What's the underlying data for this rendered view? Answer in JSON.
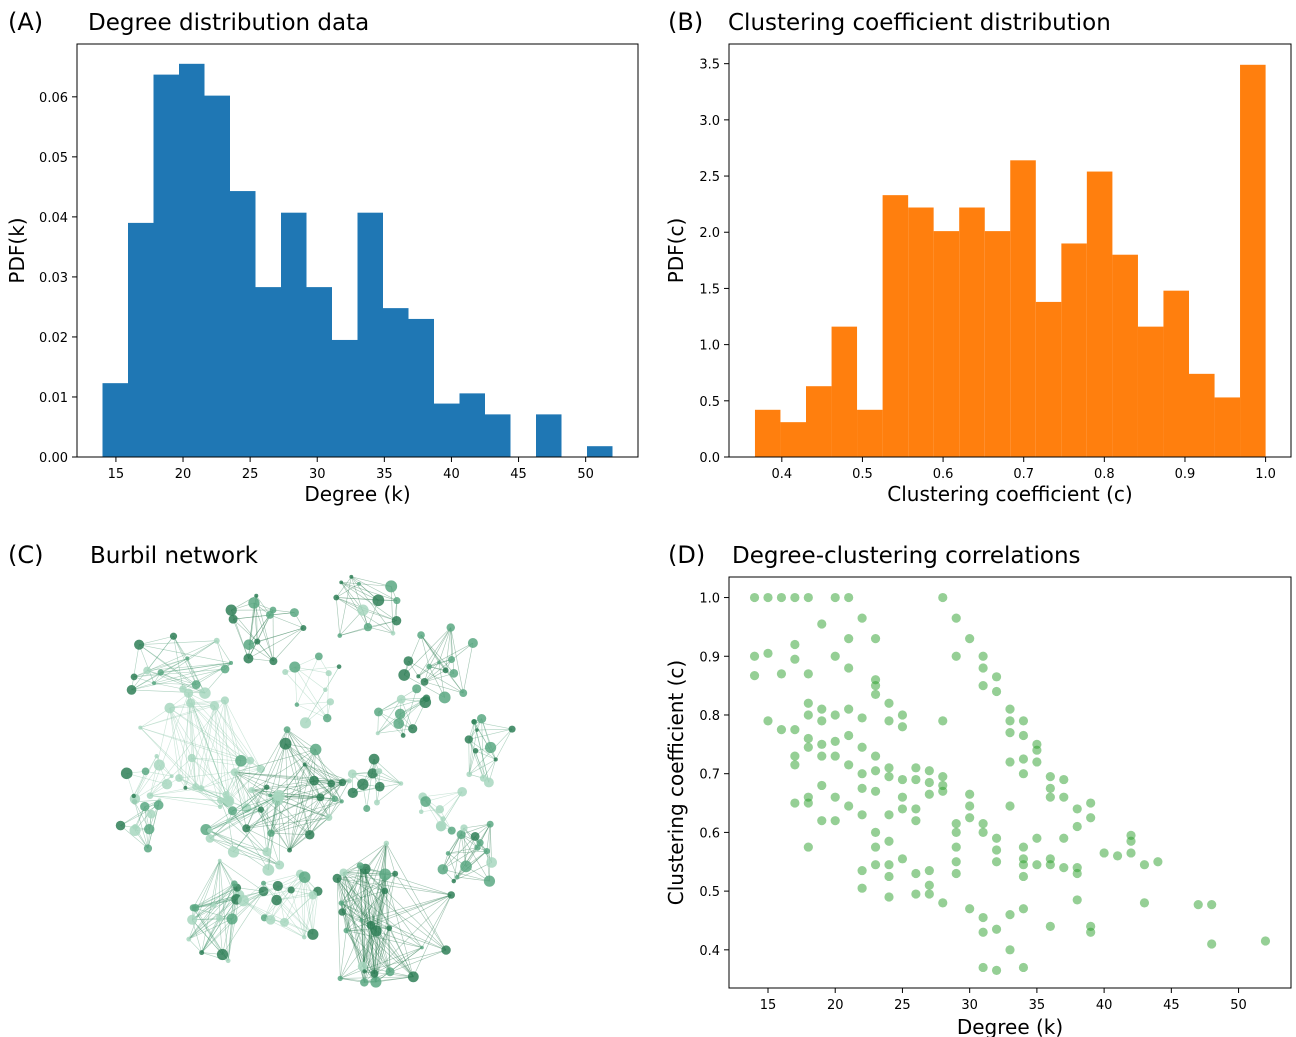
{
  "panels": {
    "a": {
      "letter": "(A)",
      "title": "Degree distribution data"
    },
    "b": {
      "letter": "(B)",
      "title": "Clustering coefficient distribution"
    },
    "c": {
      "letter": "(C)",
      "title": "Burbil network"
    },
    "d": {
      "letter": "(D)",
      "title": "Degree-clustering correlations"
    }
  },
  "chart_data": [
    {
      "type": "bar",
      "title": "Degree distribution data",
      "xlabel": "Degree (k)",
      "ylabel": "PDF(k)",
      "color": "#1f77b4",
      "xlim": [
        12.1,
        53.9
      ],
      "ylim": [
        0,
        0.0688
      ],
      "xticks": [
        15,
        20,
        25,
        30,
        35,
        40,
        45,
        50
      ],
      "yticks": [
        0.0,
        0.01,
        0.02,
        0.03,
        0.04,
        0.05,
        0.06
      ],
      "ytick_labels": [
        "0.00",
        "0.01",
        "0.02",
        "0.03",
        "0.04",
        "0.05",
        "0.06"
      ],
      "bin_edges": [
        14,
        15.9,
        17.8,
        19.7,
        21.6,
        23.5,
        25.4,
        27.3,
        29.2,
        31.1,
        33.0,
        34.9,
        36.8,
        38.7,
        40.6,
        42.5,
        44.4,
        46.3,
        48.2,
        50.1,
        52.0
      ],
      "values": [
        0.0123,
        0.039,
        0.0637,
        0.0655,
        0.0602,
        0.0443,
        0.0283,
        0.0407,
        0.0283,
        0.0195,
        0.0407,
        0.0248,
        0.023,
        0.0089,
        0.0106,
        0.0071,
        0.0,
        0.0071,
        0.0,
        0.0018
      ],
      "grid": false
    },
    {
      "type": "bar",
      "title": "Clustering coefficient distribution",
      "xlabel": "Clustering coefficient (c)",
      "ylabel": "PDF(c)",
      "color": "#ff7f0e",
      "xlim": [
        0.3345,
        1.0315
      ],
      "ylim": [
        0,
        3.675
      ],
      "xticks": [
        0.4,
        0.5,
        0.6,
        0.7,
        0.8,
        0.9,
        1.0
      ],
      "xtick_labels": [
        "0.4",
        "0.5",
        "0.6",
        "0.7",
        "0.8",
        "0.9",
        "1.0"
      ],
      "yticks": [
        0.0,
        0.5,
        1.0,
        1.5,
        2.0,
        2.5,
        3.0,
        3.5
      ],
      "ytick_labels": [
        "0.0",
        "0.5",
        "1.0",
        "1.5",
        "2.0",
        "2.5",
        "3.0",
        "3.5"
      ],
      "bin_edges": [
        0.3667,
        0.3983,
        0.43,
        0.4617,
        0.4933,
        0.525,
        0.5567,
        0.5883,
        0.62,
        0.6517,
        0.6833,
        0.715,
        0.7467,
        0.7783,
        0.81,
        0.8417,
        0.8733,
        0.905,
        0.9367,
        0.9683,
        1.0
      ],
      "values": [
        0.42,
        0.31,
        0.63,
        1.16,
        0.42,
        2.33,
        2.22,
        2.01,
        2.22,
        2.01,
        2.64,
        1.38,
        1.9,
        2.54,
        1.8,
        1.16,
        1.48,
        0.74,
        0.53,
        3.49
      ],
      "grid": false
    },
    {
      "type": "scatter",
      "title": "Degree-clustering correlations",
      "xlabel": "Degree (k)",
      "ylabel": "Clustering coefficient (c)",
      "color": "#2ca02c",
      "xlim": [
        12.1,
        53.9
      ],
      "ylim": [
        0.335,
        1.035
      ],
      "xticks": [
        15,
        20,
        25,
        30,
        35,
        40,
        45,
        50
      ],
      "yticks": [
        0.4,
        0.5,
        0.6,
        0.7,
        0.8,
        0.9,
        1.0
      ],
      "ytick_labels": [
        "0.4",
        "0.5",
        "0.6",
        "0.7",
        "0.8",
        "0.9",
        "1.0"
      ],
      "grid": false,
      "points": [
        [
          14,
          1.0
        ],
        [
          15,
          1.0
        ],
        [
          16,
          1.0
        ],
        [
          17,
          1.0
        ],
        [
          18,
          1.0
        ],
        [
          20,
          1.0
        ],
        [
          21,
          1.0
        ],
        [
          14,
          0.9
        ],
        [
          15,
          0.905
        ],
        [
          14,
          0.867
        ],
        [
          16,
          0.87
        ],
        [
          17,
          0.92
        ],
        [
          17,
          0.895
        ],
        [
          18,
          0.87
        ],
        [
          19,
          0.955
        ],
        [
          20,
          0.9
        ],
        [
          21,
          0.93
        ],
        [
          21,
          0.88
        ],
        [
          22,
          0.965
        ],
        [
          23,
          0.93
        ],
        [
          15,
          0.79
        ],
        [
          16,
          0.775
        ],
        [
          17,
          0.775
        ],
        [
          18,
          0.82
        ],
        [
          18,
          0.8
        ],
        [
          19,
          0.81
        ],
        [
          19,
          0.79
        ],
        [
          20,
          0.8
        ],
        [
          21,
          0.81
        ],
        [
          22,
          0.795
        ],
        [
          23,
          0.86
        ],
        [
          23,
          0.85
        ],
        [
          23,
          0.835
        ],
        [
          24,
          0.82
        ],
        [
          24,
          0.79
        ],
        [
          25,
          0.8
        ],
        [
          25,
          0.78
        ],
        [
          17,
          0.73
        ],
        [
          17,
          0.715
        ],
        [
          18,
          0.76
        ],
        [
          18,
          0.745
        ],
        [
          19,
          0.73
        ],
        [
          19,
          0.75
        ],
        [
          20,
          0.755
        ],
        [
          20,
          0.73
        ],
        [
          21,
          0.765
        ],
        [
          21,
          0.715
        ],
        [
          22,
          0.7
        ],
        [
          22,
          0.745
        ],
        [
          23,
          0.73
        ],
        [
          23,
          0.705
        ],
        [
          24,
          0.695
        ],
        [
          24,
          0.71
        ],
        [
          25,
          0.69
        ],
        [
          26,
          0.71
        ],
        [
          26,
          0.69
        ],
        [
          27,
          0.685
        ],
        [
          27,
          0.705
        ],
        [
          28,
          0.695
        ],
        [
          28,
          0.68
        ],
        [
          17,
          0.65
        ],
        [
          18,
          0.66
        ],
        [
          18,
          0.65
        ],
        [
          19,
          0.68
        ],
        [
          19,
          0.62
        ],
        [
          20,
          0.66
        ],
        [
          20,
          0.62
        ],
        [
          21,
          0.645
        ],
        [
          22,
          0.675
        ],
        [
          22,
          0.63
        ],
        [
          23,
          0.67
        ],
        [
          23,
          0.6
        ],
        [
          24,
          0.63
        ],
        [
          24,
          0.585
        ],
        [
          25,
          0.66
        ],
        [
          25,
          0.64
        ],
        [
          26,
          0.64
        ],
        [
          26,
          0.62
        ],
        [
          27,
          0.665
        ],
        [
          28,
          0.67
        ],
        [
          18,
          0.575
        ],
        [
          22,
          0.535
        ],
        [
          22,
          0.505
        ],
        [
          23,
          0.575
        ],
        [
          23,
          0.545
        ],
        [
          24,
          0.545
        ],
        [
          24,
          0.525
        ],
        [
          25,
          0.555
        ],
        [
          26,
          0.53
        ],
        [
          26,
          0.495
        ],
        [
          27,
          0.535
        ],
        [
          27,
          0.51
        ],
        [
          27,
          0.495
        ],
        [
          28,
          0.48
        ],
        [
          24,
          0.49
        ],
        [
          28,
          1.0
        ],
        [
          29,
          0.965
        ],
        [
          29,
          0.9
        ],
        [
          30,
          0.93
        ],
        [
          31,
          0.9
        ],
        [
          31,
          0.88
        ],
        [
          31,
          0.85
        ],
        [
          32,
          0.865
        ],
        [
          32,
          0.84
        ],
        [
          33,
          0.81
        ],
        [
          33,
          0.79
        ],
        [
          33,
          0.77
        ],
        [
          34,
          0.79
        ],
        [
          34,
          0.765
        ],
        [
          28,
          0.79
        ],
        [
          29,
          0.615
        ],
        [
          29,
          0.6
        ],
        [
          29,
          0.575
        ],
        [
          29,
          0.55
        ],
        [
          30,
          0.645
        ],
        [
          30,
          0.625
        ],
        [
          30,
          0.665
        ],
        [
          31,
          0.6
        ],
        [
          31,
          0.615
        ],
        [
          32,
          0.55
        ],
        [
          32,
          0.59
        ],
        [
          32,
          0.57
        ],
        [
          33,
          0.645
        ],
        [
          33,
          0.72
        ],
        [
          34,
          0.7
        ],
        [
          34,
          0.725
        ],
        [
          35,
          0.74
        ],
        [
          35,
          0.75
        ],
        [
          35,
          0.72
        ],
        [
          36,
          0.695
        ],
        [
          36,
          0.675
        ],
        [
          36,
          0.66
        ],
        [
          37,
          0.69
        ],
        [
          37,
          0.66
        ],
        [
          38,
          0.64
        ],
        [
          38,
          0.61
        ],
        [
          39,
          0.65
        ],
        [
          39,
          0.625
        ],
        [
          29,
          0.53
        ],
        [
          30,
          0.47
        ],
        [
          31,
          0.455
        ],
        [
          31,
          0.43
        ],
        [
          32,
          0.435
        ],
        [
          32,
          0.365
        ],
        [
          31,
          0.37
        ],
        [
          33,
          0.46
        ],
        [
          33,
          0.4
        ],
        [
          34,
          0.37
        ],
        [
          34,
          0.47
        ],
        [
          34,
          0.525
        ],
        [
          34,
          0.545
        ],
        [
          34,
          0.555
        ],
        [
          34,
          0.575
        ],
        [
          35,
          0.545
        ],
        [
          35,
          0.59
        ],
        [
          36,
          0.555
        ],
        [
          36,
          0.545
        ],
        [
          36,
          0.44
        ],
        [
          37,
          0.54
        ],
        [
          37,
          0.59
        ],
        [
          38,
          0.53
        ],
        [
          38,
          0.54
        ],
        [
          38,
          0.485
        ],
        [
          39,
          0.44
        ],
        [
          39,
          0.43
        ],
        [
          40,
          0.565
        ],
        [
          41,
          0.56
        ],
        [
          42,
          0.595
        ],
        [
          42,
          0.585
        ],
        [
          42,
          0.565
        ],
        [
          43,
          0.545
        ],
        [
          43,
          0.48
        ],
        [
          44,
          0.55
        ],
        [
          47,
          0.477
        ],
        [
          48,
          0.477
        ],
        [
          48,
          0.41
        ],
        [
          52,
          0.415
        ]
      ]
    }
  ]
}
